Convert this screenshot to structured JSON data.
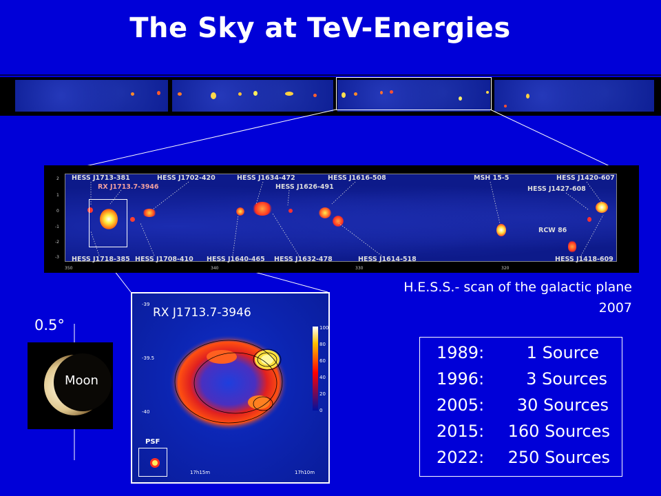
{
  "title": "The Sky at TeV-Energies",
  "scan_caption": {
    "line1": "H.E.S.S.- scan of the galactic plane",
    "line2": "2007"
  },
  "moon": {
    "angle": "0.5°",
    "label": "Moon"
  },
  "inset": {
    "name": "RX J1713.7-3946",
    "psf": "PSF",
    "y_ticks": [
      "-39",
      "-39.5",
      "-40"
    ],
    "x_ticks": [
      "17h15m",
      "17h10m"
    ],
    "colorbar_ticks": [
      "100",
      "80",
      "60",
      "40",
      "20",
      "0"
    ]
  },
  "scan": {
    "y_ticks": [
      "2",
      "1",
      "0",
      "-1",
      "-2",
      "-3"
    ],
    "x_ticks": [
      "350",
      "340",
      "330",
      "320"
    ],
    "labels_top": [
      "HESS J1713-381",
      "RX J1713.7-3946",
      "HESS J1702-420",
      "HESS J1634-472",
      "HESS J1626-491",
      "HESS J1616-508",
      "MSH 15-5",
      "HESS J1420-607",
      "HESS J1427-608",
      "RCW 86"
    ],
    "labels_bottom": [
      "HESS J1718-385",
      "HESS J1708-410",
      "HESS J1640-465",
      "HESS J1632-478",
      "HESS J1614-518",
      "HESS J1418-609"
    ]
  },
  "sources": [
    {
      "year": "1989:",
      "count": "1 Source"
    },
    {
      "year": "1996:",
      "count": "3 Sources"
    },
    {
      "year": "2005:",
      "count": "30 Sources"
    },
    {
      "year": "2015:",
      "count": "160 Sources"
    },
    {
      "year": "2022:",
      "count": "250 Sources"
    }
  ]
}
